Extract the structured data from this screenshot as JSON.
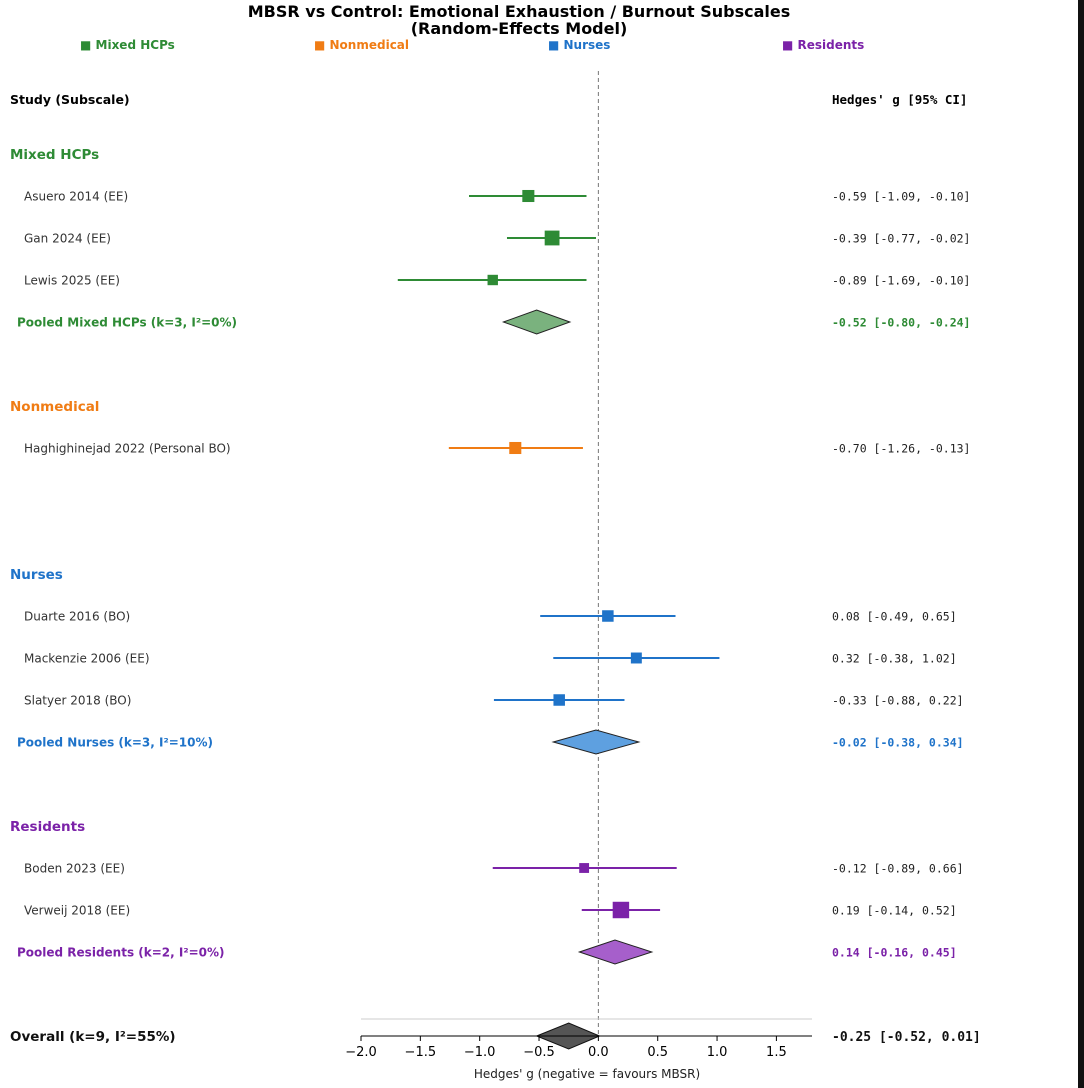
{
  "chart_data": {
    "type": "forest",
    "title": "MBSR vs Control: Emotional Exhaustion / Burnout Subscales",
    "subtitle": "(Random-Effects Model)",
    "xlabel": "Hedges' g (negative = favours MBSR)",
    "xlim": [
      -2.0,
      1.8
    ],
    "xticks": [
      -2.0,
      -1.5,
      -1.0,
      -0.5,
      0.0,
      0.5,
      1.0,
      1.5
    ],
    "xtick_labels": [
      "−2.0",
      "−1.5",
      "−1.0",
      "−0.5",
      "0.0",
      "0.5",
      "1.0",
      "1.5"
    ],
    "reference_line": 0,
    "left_header": "Study (Subscale)",
    "right_header": "Hedges' g [95% CI]",
    "legend": [
      {
        "marker": "■",
        "name": "Mixed HCPs",
        "color": "#2e8b35"
      },
      {
        "marker": "■",
        "name": "Nonmedical",
        "color": "#f07c14"
      },
      {
        "marker": "■",
        "name": "Nurses",
        "color": "#1f73c9"
      },
      {
        "marker": "■",
        "name": "Residents",
        "color": "#7b22a8"
      }
    ],
    "groups": [
      {
        "name": "Mixed HCPs",
        "color": "#2e8b35",
        "fill": "#7ab27e",
        "studies": [
          {
            "label": "Asuero 2014 (EE)",
            "g": -0.59,
            "lo": -1.09,
            "hi": -0.1,
            "text": "-0.59 [-1.09, -0.10]",
            "weight": 0.55
          },
          {
            "label": "Gan 2024 (EE)",
            "g": -0.39,
            "lo": -0.77,
            "hi": -0.02,
            "text": "-0.39 [-0.77, -0.02]",
            "weight": 0.8
          },
          {
            "label": "Lewis 2025 (EE)",
            "g": -0.89,
            "lo": -1.69,
            "hi": -0.1,
            "text": "-0.89 [-1.69, -0.10]",
            "weight": 0.4
          }
        ],
        "pooled": {
          "label": "Pooled Mixed HCPs (k=3, I²=0%)",
          "g": -0.52,
          "lo": -0.8,
          "hi": -0.24,
          "text": "-0.52 [-0.80, -0.24]"
        }
      },
      {
        "name": "Nonmedical",
        "color": "#f07c14",
        "fill": "#f5a65d",
        "studies": [
          {
            "label": "Haghighinejad 2022 (Personal BO)",
            "g": -0.7,
            "lo": -1.26,
            "hi": -0.13,
            "text": "-0.70 [-1.26, -0.13]",
            "weight": 0.55
          }
        ],
        "pooled": null
      },
      {
        "name": "Nurses",
        "color": "#1f73c9",
        "fill": "#5ea0e0",
        "studies": [
          {
            "label": "Duarte 2016 (BO)",
            "g": 0.08,
            "lo": -0.49,
            "hi": 0.65,
            "text": "0.08 [-0.49, 0.65]",
            "weight": 0.5
          },
          {
            "label": "Mackenzie 2006 (EE)",
            "g": 0.32,
            "lo": -0.38,
            "hi": 1.02,
            "text": "0.32 [-0.38, 1.02]",
            "weight": 0.45
          },
          {
            "label": "Slatyer 2018 (BO)",
            "g": -0.33,
            "lo": -0.88,
            "hi": 0.22,
            "text": "-0.33 [-0.88, 0.22]",
            "weight": 0.5
          }
        ],
        "pooled": {
          "label": "Pooled Nurses (k=3, I²=10%)",
          "g": -0.02,
          "lo": -0.38,
          "hi": 0.34,
          "text": "-0.02 [-0.38, 0.34]"
        }
      },
      {
        "name": "Residents",
        "color": "#7b22a8",
        "fill": "#a65fcb",
        "studies": [
          {
            "label": "Boden 2023 (EE)",
            "g": -0.12,
            "lo": -0.89,
            "hi": 0.66,
            "text": "-0.12 [-0.89, 0.66]",
            "weight": 0.35
          },
          {
            "label": "Verweij 2018 (EE)",
            "g": 0.19,
            "lo": -0.14,
            "hi": 0.52,
            "text": "0.19 [-0.14, 0.52]",
            "weight": 0.95
          }
        ],
        "pooled": {
          "label": "Pooled Residents (k=2, I²=0%)",
          "g": 0.14,
          "lo": -0.16,
          "hi": 0.45,
          "text": "0.14 [-0.16, 0.45]"
        }
      }
    ],
    "overall": {
      "label": "Overall (k=9, I²=55%)",
      "g": -0.25,
      "lo": -0.52,
      "hi": 0.01,
      "text": "-0.25 [-0.52, 0.01]",
      "color": "#111111",
      "fill": "#555555"
    }
  }
}
